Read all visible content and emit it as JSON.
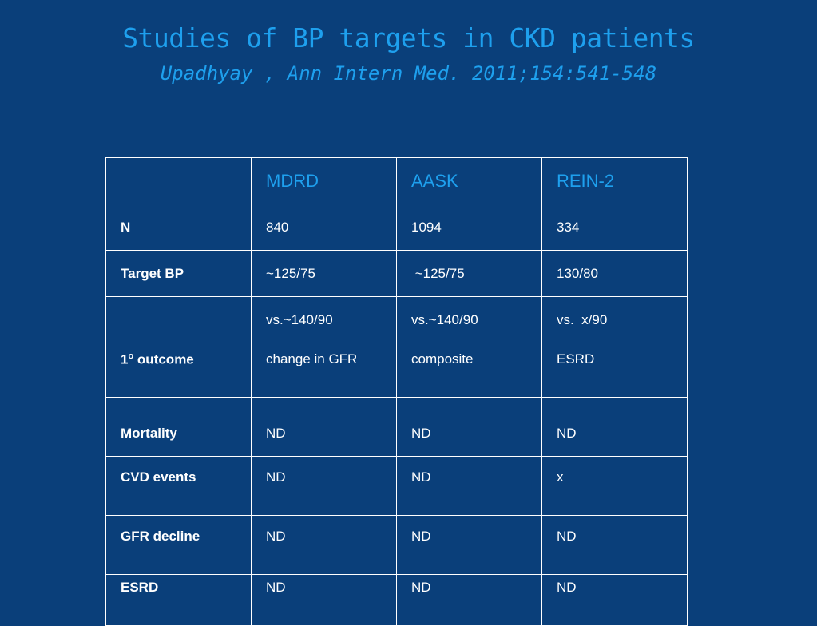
{
  "slide": {
    "title": "Studies of BP targets in CKD patients",
    "subtitle": "Upadhyay , Ann Intern Med. 2011;154:541-548"
  },
  "table": {
    "columns": [
      "",
      "MDRD",
      "AASK",
      "REIN-2"
    ],
    "rows": [
      {
        "label": "N",
        "values": [
          "840",
          "1094",
          "334"
        ]
      },
      {
        "label": "Target BP",
        "values": [
          "~125/75",
          " ~125/75",
          "130/80"
        ]
      },
      {
        "label": "",
        "values": [
          "vs.~140/90",
          "vs.~140/90",
          "vs.  x/90"
        ]
      },
      {
        "label_prefix": "1",
        "label_sup": "o",
        "label_suffix": " outcome",
        "values": [
          "change in GFR",
          "composite",
          "ESRD"
        ]
      },
      {
        "label": "Mortality",
        "values": [
          "ND",
          "ND",
          "ND"
        ]
      },
      {
        "label": "CVD events",
        "values": [
          "ND",
          "ND",
          "x"
        ]
      },
      {
        "label": "GFR decline",
        "values": [
          "ND",
          "ND",
          "ND"
        ]
      },
      {
        "label": "ESRD",
        "values": [
          "ND",
          "ND",
          "ND"
        ]
      }
    ]
  },
  "colors": {
    "background": "#0a3f7a",
    "accent": "#1ea0ee",
    "text": "#ffffff"
  }
}
